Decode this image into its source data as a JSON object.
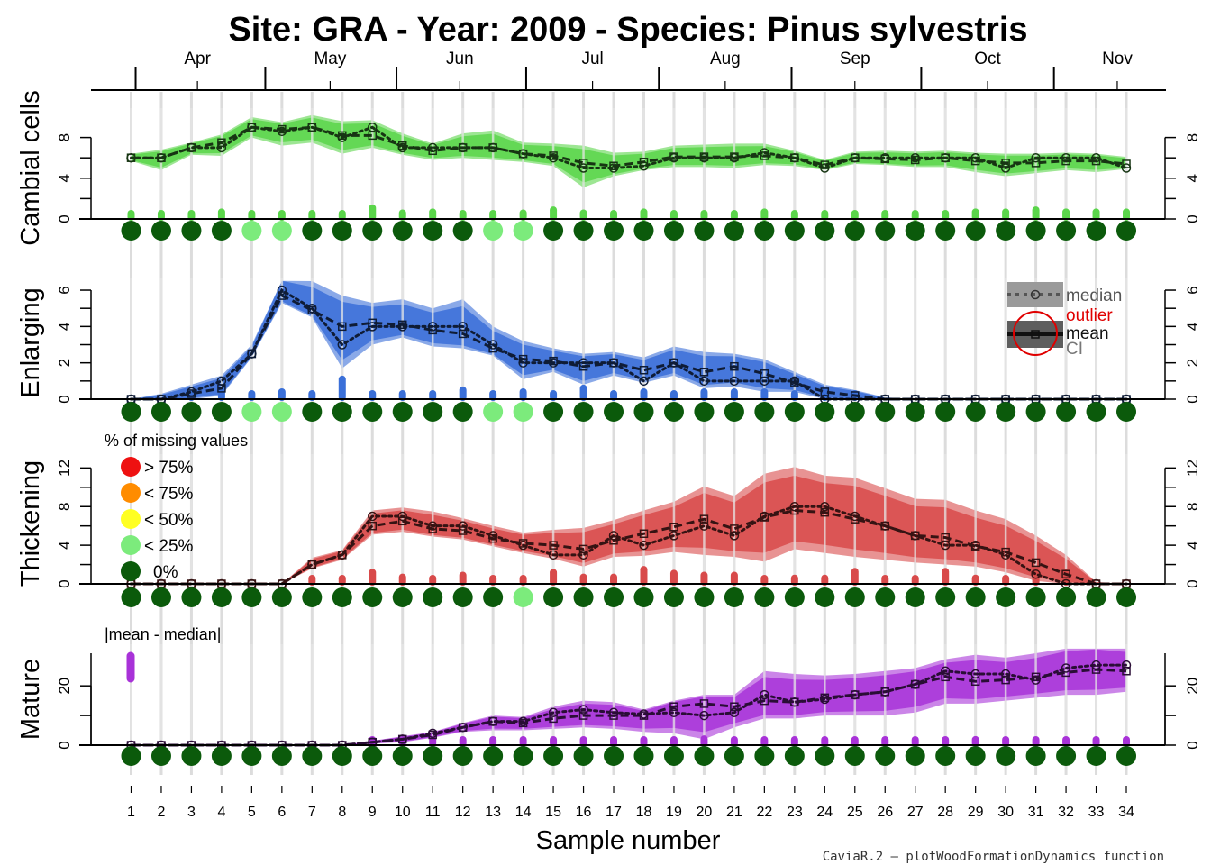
{
  "title": "Site: GRA - Year: 2009 - Species: Pinus sylvestris",
  "footer": "CaviaR.2 – plotWoodFormationDynamics function",
  "chart_data": {
    "type": "line",
    "xlabel": "Sample number",
    "samples": [
      1,
      2,
      3,
      4,
      5,
      6,
      7,
      8,
      9,
      10,
      11,
      12,
      13,
      14,
      15,
      16,
      17,
      18,
      19,
      20,
      21,
      22,
      23,
      24,
      25,
      26,
      27,
      28,
      29,
      30,
      31,
      32,
      33,
      34
    ],
    "months": [
      {
        "label": "Apr",
        "x": 3.2
      },
      {
        "label": "May",
        "x": 7.6
      },
      {
        "label": "Jun",
        "x": 11.9
      },
      {
        "label": "Jul",
        "x": 16.3
      },
      {
        "label": "Aug",
        "x": 20.7
      },
      {
        "label": "Sep",
        "x": 25.0
      },
      {
        "label": "Oct",
        "x": 29.4
      },
      {
        "label": "Nov",
        "x": 33.7
      }
    ],
    "month_boundaries": [
      1.15,
      5.45,
      9.8,
      14.1,
      18.5,
      22.9,
      27.2,
      31.6
    ],
    "panels": [
      {
        "ylabel": "Cambial cells",
        "ylim": [
          0,
          10
        ],
        "yticks": [
          0,
          4,
          8
        ],
        "color": "#5AD54A",
        "series": {
          "mean": [
            6,
            6,
            7,
            7.5,
            9,
            8.8,
            9,
            8.2,
            8.2,
            7.2,
            6.7,
            7,
            7,
            6.4,
            6.2,
            5.5,
            5.2,
            5.6,
            6.1,
            6.1,
            6.1,
            6.2,
            6,
            5.3,
            6,
            5.9,
            5.8,
            6,
            5.7,
            5.5,
            5.5,
            5.7,
            5.7,
            5.4
          ],
          "median": [
            6,
            6,
            7,
            7,
            9,
            8.6,
            9,
            8,
            9,
            7,
            7,
            7,
            7,
            6.4,
            6,
            5,
            5,
            5.2,
            6,
            6,
            6,
            6.5,
            6,
            5,
            6,
            6,
            6,
            6,
            6,
            5,
            6,
            6,
            6,
            5
          ],
          "ci_low": [
            5.7,
            4.8,
            6.3,
            6.2,
            8,
            7.2,
            7.5,
            6.4,
            7,
            6.3,
            5.8,
            6,
            5.8,
            5.6,
            5.2,
            3.1,
            4.2,
            4.8,
            5.1,
            5.1,
            5,
            5.3,
            5.2,
            4.8,
            5.4,
            5.3,
            5.1,
            5.1,
            4.6,
            4.2,
            4.5,
            4.8,
            4.6,
            4.9
          ],
          "ci_high": [
            6.4,
            6.8,
            7.5,
            8.3,
            10,
            9.5,
            10.2,
            9.6,
            9.7,
            8.4,
            7.4,
            8.4,
            8.7,
            7.5,
            7.4,
            7.2,
            6.5,
            6.6,
            7.2,
            7.3,
            7.4,
            7.4,
            6.7,
            5.8,
            6.6,
            6.7,
            6.6,
            6.7,
            6.5,
            6.4,
            6.4,
            6.5,
            6.4,
            6.1
          ]
        },
        "mad": [
          0.2,
          0.2,
          0.3,
          0.5,
          0.2,
          0.3,
          0.2,
          0.3,
          0.9,
          0.4,
          0.5,
          0.3,
          0.2,
          0.4,
          0.7,
          0.4,
          0.2,
          0.5,
          0.3,
          0.3,
          0.3,
          0.5,
          0.2,
          0.1,
          0.3,
          0.3,
          0.3,
          0.3,
          0.5,
          0.5,
          0.7,
          0.5,
          0.5,
          0.5
        ],
        "missing": [
          0,
          0,
          0,
          0,
          1,
          1,
          0,
          0,
          0,
          0,
          0,
          0,
          1,
          1,
          0,
          0,
          0,
          0,
          0,
          0,
          0,
          0,
          0,
          0,
          0,
          0,
          0,
          0,
          0,
          0,
          0,
          0,
          0,
          0
        ]
      },
      {
        "ylabel": "Enlarging",
        "ylim": [
          0,
          6.2
        ],
        "yticks": [
          0,
          2,
          4,
          6
        ],
        "color": "#3A6FD8",
        "series": {
          "mean": [
            0,
            0,
            0.3,
            0.6,
            2.5,
            5.7,
            4.9,
            4,
            4.2,
            4.1,
            3.8,
            3.6,
            2.8,
            2.2,
            2.1,
            1.8,
            2,
            1.6,
            2,
            1.5,
            1.8,
            1.4,
            0.9,
            0.4,
            0.2,
            0,
            0,
            0,
            0,
            0,
            0,
            0,
            0,
            0
          ],
          "median": [
            0,
            0,
            0.4,
            1,
            2.5,
            6,
            5,
            3,
            4,
            4,
            4,
            4,
            3,
            2,
            2,
            2,
            2,
            1,
            2,
            1,
            1,
            1,
            1,
            0,
            0,
            0,
            0,
            0,
            0,
            0,
            0,
            0,
            0,
            0
          ],
          "ci_low": [
            0,
            0,
            0,
            0.2,
            2.3,
            5.3,
            4.5,
            1.7,
            3,
            3.4,
            2.9,
            2.8,
            2.4,
            1.1,
            1.5,
            0.8,
            1.3,
            0.9,
            1.3,
            0.6,
            0.7,
            0.4,
            0.4,
            0,
            0,
            0,
            0,
            0,
            0,
            0,
            0,
            0,
            0,
            0
          ],
          "ci_high": [
            0,
            0.3,
            0.8,
            1.3,
            3,
            7,
            6.5,
            5.7,
            5.3,
            5.5,
            5,
            5.5,
            4,
            3.2,
            2.8,
            2.5,
            2.6,
            2.3,
            2.9,
            2.6,
            2.5,
            2.2,
            1.5,
            0.8,
            0.5,
            0.1,
            0,
            0,
            0,
            0,
            0,
            0,
            0,
            0
          ]
        },
        "mad": [
          0,
          0,
          0.2,
          0.3,
          0.1,
          0.3,
          0.2,
          1,
          0.2,
          0.1,
          0.2,
          0.4,
          0.2,
          0.3,
          0.2,
          0.5,
          0.1,
          0.3,
          0.1,
          0.3,
          0.3,
          0.3,
          0.2,
          0.4,
          0.2,
          0,
          0,
          0,
          0,
          0,
          0,
          0,
          0,
          0
        ],
        "missing": [
          0,
          0,
          0,
          0,
          1,
          1,
          0,
          0,
          0,
          0,
          0,
          0,
          1,
          1,
          0,
          0,
          0,
          0,
          0,
          0,
          0,
          0,
          0,
          0,
          0,
          0,
          0,
          0,
          0,
          0,
          0,
          0,
          0,
          0
        ]
      },
      {
        "ylabel": "Thickening",
        "ylim": [
          0,
          12.5
        ],
        "yticks": [
          0,
          4,
          8,
          12
        ],
        "color": "#D84A4A",
        "series": {
          "mean": [
            0,
            0,
            0,
            0,
            0,
            0,
            2,
            3,
            6,
            6.5,
            5.7,
            5.5,
            4.7,
            4.2,
            4,
            3.6,
            4.5,
            5.2,
            5.9,
            6.7,
            5.7,
            6.9,
            7.6,
            7.4,
            6.7,
            6,
            5,
            4.8,
            3.9,
            3.3,
            2.2,
            1,
            0,
            0
          ],
          "median": [
            0,
            0,
            0,
            0,
            0,
            0,
            2,
            3,
            7,
            7,
            6,
            6,
            5,
            4,
            3,
            3,
            5,
            4,
            5,
            6,
            5,
            7,
            8,
            8,
            7,
            6,
            5,
            4,
            4,
            3,
            1,
            0,
            0,
            0
          ],
          "ci_low": [
            0,
            0,
            0,
            0,
            0,
            0,
            1.6,
            2.5,
            5.1,
            5.4,
            4.9,
            4.6,
            3.9,
            3.2,
            2.6,
            1.8,
            2.8,
            2.9,
            3.3,
            3,
            2.8,
            2.3,
            3.6,
            3.2,
            2.8,
            2.5,
            2.2,
            2,
            1.8,
            1.2,
            0.3,
            0,
            0,
            0
          ],
          "ci_high": [
            0,
            0,
            0,
            0,
            0,
            0,
            2.7,
            3.5,
            7.6,
            7.9,
            7.5,
            6.8,
            6,
            5.3,
            5.6,
            5.8,
            6.6,
            7.6,
            8.5,
            10.1,
            9.1,
            11.4,
            12.1,
            11.2,
            11,
            9.9,
            8.8,
            8.7,
            7.6,
            6.7,
            5,
            3,
            0.2,
            0
          ]
        },
        "mad": [
          0,
          0,
          0,
          0,
          0,
          0,
          0.2,
          0.2,
          1,
          0.5,
          0.3,
          0.7,
          0.3,
          0.3,
          1,
          0.5,
          0.5,
          1.3,
          0.9,
          0.7,
          0.7,
          0.2,
          0.4,
          0.4,
          1.1,
          0.2,
          0.3,
          1.1,
          0.4,
          0.3,
          1.2,
          1,
          0,
          0
        ],
        "missing": [
          0,
          0,
          0,
          0,
          0,
          0,
          0,
          0,
          0,
          0,
          0,
          0,
          0,
          1,
          0,
          0,
          0,
          0,
          0,
          0,
          0,
          0,
          0,
          0,
          0,
          0,
          0,
          0,
          0,
          0,
          0,
          0,
          0,
          0
        ]
      },
      {
        "ylabel": "Mature",
        "ylim": [
          0,
          31
        ],
        "yticks": [
          0,
          20
        ],
        "color": "#A832D8",
        "series": {
          "mean": [
            0,
            0,
            0,
            0,
            0,
            0,
            0,
            0,
            1,
            2,
            3.5,
            6,
            8,
            7.5,
            9,
            10,
            10,
            10,
            13,
            14,
            13,
            15,
            14.5,
            16,
            17,
            18,
            20.5,
            23,
            21.5,
            22,
            23,
            24.5,
            25.5,
            25
          ],
          "median": [
            0,
            0,
            0,
            0,
            0,
            0,
            0,
            0,
            1,
            2,
            4,
            6,
            8,
            8,
            11,
            12,
            11,
            10.5,
            11,
            10,
            11,
            17,
            14.5,
            15.5,
            17,
            18,
            20.5,
            25,
            24,
            24,
            22,
            26,
            27,
            27
          ],
          "ci_low": [
            0,
            0,
            0,
            0,
            0,
            0,
            0,
            0,
            0.5,
            1,
            2.5,
            4.5,
            5,
            5,
            5.5,
            6,
            5.5,
            4.5,
            4,
            2,
            6,
            9,
            9,
            10,
            10,
            10,
            11,
            14,
            14,
            15,
            16,
            17,
            17,
            18
          ],
          "ci_high": [
            0,
            0,
            0,
            0,
            0,
            0,
            0,
            0,
            1.5,
            3,
            4.5,
            7.5,
            10,
            9.5,
            13,
            15,
            14.5,
            12,
            15,
            17,
            17,
            25,
            24,
            23.5,
            24,
            25,
            26,
            29,
            30.5,
            29.5,
            31,
            33.5,
            34,
            33
          ]
        },
        "mad": [
          0,
          0,
          0,
          0,
          0,
          0,
          0,
          0,
          0.3,
          0.2,
          0.4,
          0.5,
          0.5,
          0.5,
          2,
          2,
          1,
          1,
          2,
          3,
          1,
          1,
          0.5,
          0.5,
          0.5,
          0.5,
          0.5,
          2,
          2.5,
          1.5,
          1,
          1.5,
          1.5,
          2
        ],
        "missing": [
          0,
          0,
          0,
          0,
          0,
          0,
          0,
          0,
          0,
          0,
          0,
          0,
          0,
          0,
          0,
          0,
          0,
          0,
          0,
          0,
          0,
          0,
          0,
          0,
          0,
          0,
          0,
          0,
          0,
          0,
          0,
          0,
          0,
          0
        ]
      }
    ],
    "legend_stats": {
      "median": "median",
      "outlier": "outlier",
      "mean": "mean",
      "ci": "CI"
    },
    "missing_legend": {
      "title": "% of missing values",
      "items": [
        {
          "label": "> 75%",
          "color": "#EE1111"
        },
        {
          "label": "< 75%",
          "color": "#FF8C00"
        },
        {
          "label": "< 50%",
          "color": "#FFFF22"
        },
        {
          "label": "< 25%",
          "color": "#7CEB7C"
        },
        {
          "label": "0%",
          "color": "#0B5A0B"
        }
      ]
    },
    "mad_label": "|mean - median|",
    "mad_example": 10
  }
}
